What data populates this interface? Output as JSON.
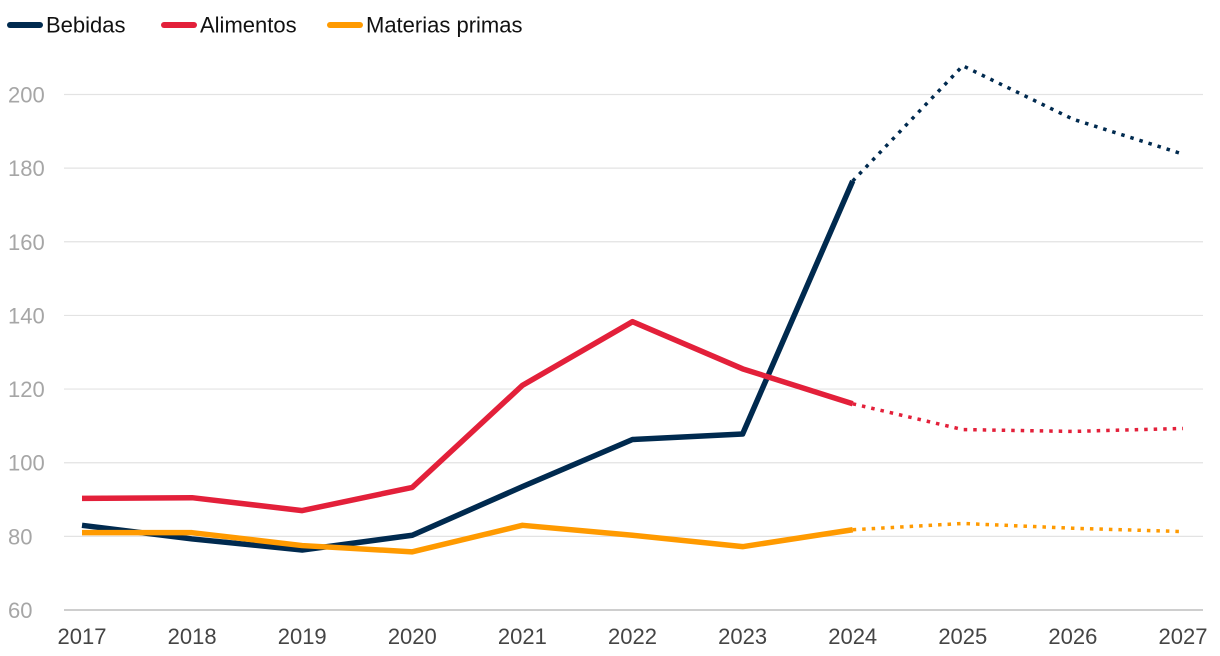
{
  "chart_data": {
    "type": "line",
    "title": "",
    "xlabel": "",
    "ylabel": "",
    "x": [
      "2017",
      "2018",
      "2019",
      "2020",
      "2021",
      "2022",
      "2023",
      "2024",
      "2025",
      "2026",
      "2027"
    ],
    "ylim": [
      60,
      210
    ],
    "yticks": [
      "60",
      "80",
      "100",
      "120",
      "140",
      "160",
      "180",
      "200"
    ],
    "grid": true,
    "legend_position": "top-left",
    "forecast_from": "2024",
    "forecast_style": "dotted",
    "series": [
      {
        "name": "Bebidas",
        "color": "#002a4f",
        "values": [
          83,
          79.3,
          76.3,
          80.3,
          93.5,
          106.3,
          107.8,
          176.5,
          207.8,
          193.3,
          183.8
        ]
      },
      {
        "name": "Alimentos",
        "color": "#e3203a",
        "values": [
          90.3,
          90.5,
          87,
          93.3,
          121,
          138.3,
          125.5,
          116,
          109,
          108.5,
          109.3
        ]
      },
      {
        "name": "Materias primas",
        "color": "#ff9a00",
        "values": [
          81,
          81,
          77.5,
          75.8,
          83,
          80.3,
          77.2,
          81.8,
          83.5,
          82.2,
          81.3
        ]
      }
    ]
  }
}
